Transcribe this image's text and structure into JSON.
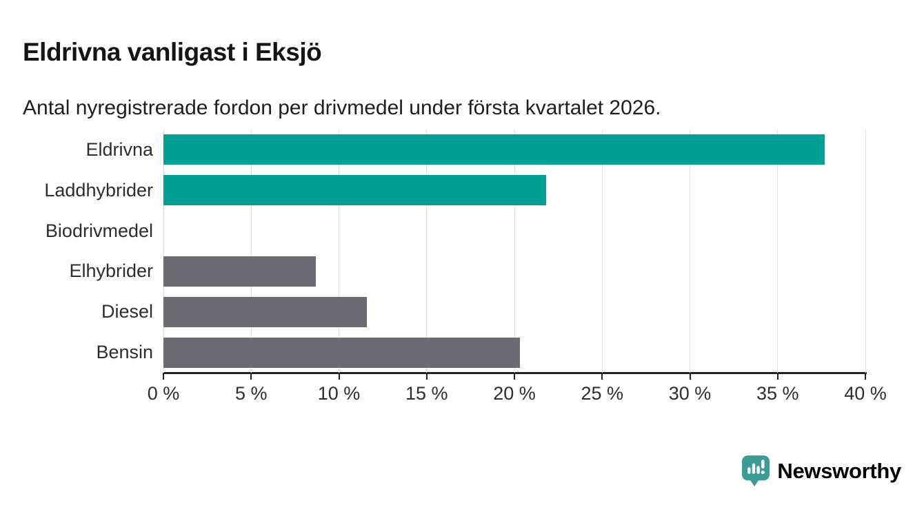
{
  "header": {
    "title": "Eldrivna vanligast i Eksjö",
    "subtitle": "Antal nyregistrerade fordon per drivmedel under första kvartalet 2026."
  },
  "chart_data": {
    "type": "bar",
    "orientation": "horizontal",
    "title": "Eldrivna vanligast i Eksjö",
    "subtitle": "Antal nyregistrerade fordon per drivmedel under första kvartalet 2026.",
    "categories": [
      "Eldrivna",
      "Laddhybrider",
      "Biodrivmedel",
      "Elhybrider",
      "Diesel",
      "Bensin"
    ],
    "values": [
      37.7,
      21.8,
      0,
      8.7,
      11.6,
      20.3
    ],
    "unit": "%",
    "bar_colors": [
      "#00A096",
      "#00A096",
      "#00A096",
      "#6A6A72",
      "#6A6A72",
      "#6A6A72"
    ],
    "xlim": [
      0,
      40
    ],
    "xticks": [
      0,
      5,
      10,
      15,
      20,
      25,
      30,
      35,
      40
    ],
    "xtick_labels": [
      "0 %",
      "5 %",
      "10 %",
      "15 %",
      "20 %",
      "25 %",
      "30 %",
      "35 %",
      "40 %"
    ],
    "grid": true,
    "legend": "none",
    "xlabel": "",
    "ylabel": ""
  },
  "colors": {
    "teal_bar": "#00A096",
    "gray_bar": "#6A6A72",
    "gridline": "#E0E0E0",
    "axis": "#1F1F1F",
    "text": "#2D2D2D",
    "logo": "#3B9C93"
  },
  "footer": {
    "brand": "Newsworthy",
    "logo_icon": "newsworthy-speech-bubble-bar-chart-icon"
  }
}
